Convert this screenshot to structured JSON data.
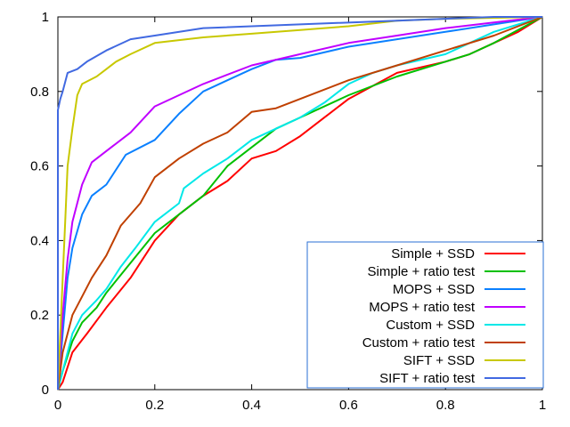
{
  "chart_data": {
    "type": "line",
    "title": "",
    "xlabel": "",
    "ylabel": "",
    "xlim": [
      0,
      1
    ],
    "ylim": [
      0,
      1
    ],
    "xticks": [
      "0",
      "0.2",
      "0.4",
      "0.6",
      "0.8",
      "1"
    ],
    "yticks": [
      "0",
      "0.2",
      "0.4",
      "0.6",
      "0.8",
      "1"
    ],
    "grid": false,
    "legend_position": "bottom-right",
    "legend_border_color": "#2a6fd6",
    "series": [
      {
        "name": "Simple + SSD",
        "color": "#ff0000",
        "x": [
          0,
          0.01,
          0.03,
          0.06,
          0.1,
          0.15,
          0.2,
          0.25,
          0.3,
          0.35,
          0.4,
          0.45,
          0.5,
          0.55,
          0.6,
          0.7,
          0.8,
          0.85,
          0.9,
          0.95,
          1
        ],
        "y": [
          0,
          0.02,
          0.1,
          0.15,
          0.22,
          0.3,
          0.4,
          0.47,
          0.52,
          0.56,
          0.62,
          0.64,
          0.68,
          0.73,
          0.78,
          0.85,
          0.88,
          0.9,
          0.93,
          0.96,
          1
        ]
      },
      {
        "name": "Simple + ratio test",
        "color": "#00c000",
        "x": [
          0,
          0.01,
          0.03,
          0.05,
          0.08,
          0.1,
          0.15,
          0.2,
          0.25,
          0.3,
          0.35,
          0.4,
          0.45,
          0.5,
          0.6,
          0.7,
          0.8,
          0.85,
          0.9,
          1
        ],
        "y": [
          0,
          0.05,
          0.13,
          0.18,
          0.22,
          0.26,
          0.34,
          0.42,
          0.47,
          0.52,
          0.6,
          0.65,
          0.7,
          0.73,
          0.79,
          0.84,
          0.88,
          0.9,
          0.93,
          1
        ]
      },
      {
        "name": "MOPS + SSD",
        "color": "#0a80ff",
        "x": [
          0,
          0.01,
          0.02,
          0.03,
          0.05,
          0.07,
          0.1,
          0.14,
          0.2,
          0.25,
          0.3,
          0.35,
          0.4,
          0.45,
          0.5,
          0.6,
          0.7,
          0.8,
          0.9,
          1
        ],
        "y": [
          0,
          0.15,
          0.3,
          0.38,
          0.47,
          0.52,
          0.55,
          0.63,
          0.67,
          0.74,
          0.8,
          0.83,
          0.86,
          0.885,
          0.89,
          0.92,
          0.94,
          0.96,
          0.98,
          1
        ]
      },
      {
        "name": "MOPS + ratio test",
        "color": "#c000ff",
        "x": [
          0,
          0.005,
          0.01,
          0.02,
          0.03,
          0.05,
          0.07,
          0.1,
          0.15,
          0.2,
          0.25,
          0.3,
          0.4,
          0.5,
          0.6,
          0.7,
          0.8,
          0.9,
          1
        ],
        "y": [
          0,
          0.1,
          0.2,
          0.35,
          0.45,
          0.55,
          0.61,
          0.64,
          0.69,
          0.76,
          0.79,
          0.82,
          0.87,
          0.9,
          0.93,
          0.95,
          0.97,
          0.985,
          1
        ]
      },
      {
        "name": "Custom + SSD",
        "color": "#00e8e8",
        "x": [
          0,
          0.01,
          0.03,
          0.05,
          0.08,
          0.1,
          0.13,
          0.16,
          0.2,
          0.25,
          0.26,
          0.3,
          0.35,
          0.4,
          0.45,
          0.5,
          0.55,
          0.6,
          0.65,
          0.7,
          0.8,
          0.85,
          0.9,
          1
        ],
        "y": [
          0,
          0.05,
          0.15,
          0.2,
          0.24,
          0.27,
          0.33,
          0.38,
          0.45,
          0.5,
          0.54,
          0.58,
          0.62,
          0.67,
          0.7,
          0.73,
          0.77,
          0.82,
          0.85,
          0.87,
          0.9,
          0.93,
          0.96,
          1
        ]
      },
      {
        "name": "Custom + ratio test",
        "color": "#c04000",
        "x": [
          0,
          0.01,
          0.03,
          0.05,
          0.07,
          0.1,
          0.13,
          0.17,
          0.2,
          0.25,
          0.3,
          0.35,
          0.4,
          0.45,
          0.5,
          0.6,
          0.7,
          0.8,
          0.9,
          1
        ],
        "y": [
          0,
          0.1,
          0.2,
          0.25,
          0.3,
          0.36,
          0.44,
          0.5,
          0.57,
          0.62,
          0.66,
          0.69,
          0.745,
          0.755,
          0.78,
          0.83,
          0.87,
          0.91,
          0.95,
          1
        ]
      },
      {
        "name": "SIFT + SSD",
        "color": "#c8c800",
        "x": [
          0,
          0.01,
          0.015,
          0.02,
          0.03,
          0.04,
          0.05,
          0.08,
          0.1,
          0.12,
          0.15,
          0.2,
          0.3,
          0.4,
          0.5,
          0.6,
          0.7,
          0.8,
          1
        ],
        "y": [
          0,
          0.3,
          0.45,
          0.6,
          0.7,
          0.79,
          0.82,
          0.84,
          0.86,
          0.88,
          0.9,
          0.93,
          0.945,
          0.955,
          0.965,
          0.975,
          0.99,
          0.995,
          1
        ]
      },
      {
        "name": "SIFT + ratio test",
        "color": "#4169e1",
        "x": [
          0,
          0,
          0.005,
          0.01,
          0.02,
          0.04,
          0.06,
          0.1,
          0.15,
          0.2,
          0.3,
          0.5,
          0.7,
          0.9,
          1
        ],
        "y": [
          0,
          0.75,
          0.78,
          0.8,
          0.85,
          0.86,
          0.88,
          0.91,
          0.94,
          0.95,
          0.97,
          0.98,
          0.99,
          1,
          1
        ]
      }
    ]
  }
}
